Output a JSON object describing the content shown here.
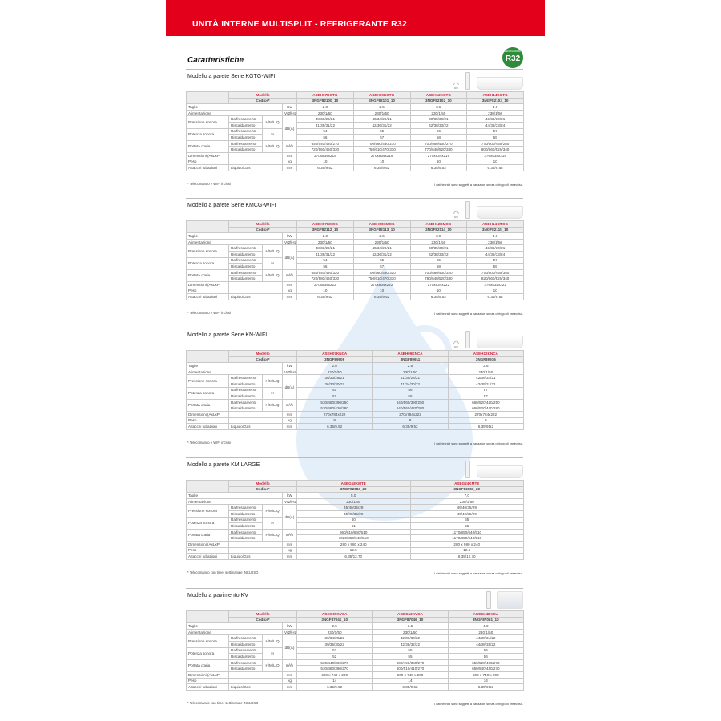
{
  "header": {
    "title": "UNITÀ INTERNE MULTISPLIT - REFRIGERANTE R32",
    "subtitle": "Caratteristiche",
    "badge": "R32",
    "badge_small": "REFRIGERANT"
  },
  "labels": {
    "modello": "Modello",
    "codice": "Codice*",
    "taglie": "Taglie",
    "alim": "Alimentazione",
    "press": "Pressione sonora",
    "pot": "Potenza sonora",
    "air": "Portata d'aria",
    "cool": "Raffrescamento",
    "heat": "Riscaldamento",
    "hmlq": "H/M/L/Q",
    "h": "H",
    "dims": "Dimensioni (AxLxP)",
    "peso": "Peso",
    "attacchi": "Attacchi tubazioni",
    "liq": "Liquido/Gas",
    "wifi": "WIFI",
    "disclaimer": "I dati tecnici sono soggetti a variazioni senza obbligo di preavviso."
  },
  "units": {
    "kw": "Kw",
    "kw2": "kW",
    "v": "V/Ø/Hz",
    "db": "dB(A)",
    "m3": "m³/h",
    "mm": "mm",
    "kg": "kg"
  },
  "sections": [
    {
      "title": "Modello a parete Serie KGTG-WIFI",
      "wifi": true,
      "unit_type": "wall",
      "kw_key": "kw",
      "note": "* Telecomando e WIFI inclusi",
      "models": [
        "ASEH07KGTG",
        "ASEH09KGTG",
        "ASEH12KGTG",
        "ASEH14KGTG"
      ],
      "codes": [
        "3NGF82100_10",
        "3NGF82101_10",
        "3NGF82102_10",
        "3NGF82103_10"
      ],
      "taglie": [
        "2.0",
        "2.5",
        "3.5",
        "4.0"
      ],
      "alim": [
        "230/1/50",
        "230/1/50",
        "230/1/50",
        "230/1/50"
      ],
      "press_cool": [
        "38/33/29/21",
        "40/34/29/21",
        "40/35/30/21",
        "43/36/30/21"
      ],
      "press_heat": [
        "41/35/31/22",
        "42/36/31/22",
        "42/38/33/22",
        "44/39/33/24"
      ],
      "pot_cool": [
        "54",
        "55",
        "56",
        "57"
      ],
      "pot_heat": [
        "56",
        "57",
        "58",
        "59"
      ],
      "air_cool": [
        "650/540/430/270",
        "700/560/430/270",
        "700/560/430/270",
        "770/600/450/280"
      ],
      "air_heat": [
        "720/560/460/330",
        "750/610/470/330",
        "770/640/520/330",
        "800/660/520/340"
      ],
      "dims": [
        "270x834x215",
        "270x834x215",
        "270x834x215",
        "270x834x215"
      ],
      "peso": [
        "10",
        "10",
        "10",
        "10"
      ],
      "attacchi": [
        "6.35/9.52",
        "6.35/9.52",
        "6.35/9.52",
        "6.35/9.52"
      ]
    },
    {
      "title": "Modello a parete Serie KMCG-WIFI",
      "wifi": true,
      "unit_type": "wall",
      "kw_key": "kw2",
      "note": "* Telecomando e WIFI inclusi",
      "models": [
        "ASEH07KMCG",
        "ASEH09KMCG",
        "ASEH12KMCG",
        "ASEH14KMCG"
      ],
      "codes": [
        "3NGF82112_10",
        "3NGF82113_10",
        "3NGF82114_10",
        "3NGF82115_10"
      ],
      "taglie": [
        "2.0",
        "2.5",
        "3.5",
        "4.0"
      ],
      "alim": [
        "230/1/50",
        "230/1/50",
        "230/1/50",
        "230/1/50"
      ],
      "press_cool": [
        "38/33/29/21",
        "40/34/29/21",
        "40/35/30/21",
        "43/36/30/21"
      ],
      "press_heat": [
        "41/35/31/22",
        "42/36/31/22",
        "42/38/33/22",
        "44/39/33/24"
      ],
      "pot_cool": [
        "54",
        "55",
        "55",
        "57"
      ],
      "pot_heat": [
        "56",
        "57",
        "58",
        "59"
      ],
      "air_cool": [
        "650/540/430/320",
        "700/560/430/320",
        "700/580/430/320",
        "770/600/450/350"
      ],
      "air_heat": [
        "720/580/460/330",
        "750/610/470/330",
        "780/640/520/330",
        "820/660/520/340"
      ],
      "dims": [
        "270x834x222",
        "270x834x222",
        "270x834x222",
        "270x834x222"
      ],
      "peso": [
        "10",
        "10",
        "10",
        "10"
      ],
      "attacchi": [
        "6.35/9.52",
        "6.35/9.52",
        "6.35/9.52",
        "6.35/9.52"
      ]
    },
    {
      "title": "Modello a parete Serie KN-WIFI",
      "wifi": true,
      "unit_type": "wall",
      "kw_key": "kw2",
      "note": "* Telecomando e WIFI inclusi",
      "models": [
        "ASEH07KNCA",
        "ASEH09KNCA",
        "ASEH12KNCA"
      ],
      "codes": [
        "3NGF89906",
        "3NGF89911",
        "3NGF89916"
      ],
      "taglie": [
        "2.0",
        "2.5",
        "3.5"
      ],
      "alim": [
        "230/1/50",
        "230/1/50",
        "230/1/50"
      ],
      "press_cool": [
        "36/33/28/21",
        "41/35/28/21",
        "42/36/32/21"
      ],
      "press_heat": [
        "36/33/30/22",
        "41/34/30/22",
        "42/35/31/22"
      ],
      "pot_cool": [
        "51",
        "56",
        "57"
      ],
      "pot_heat": [
        "51",
        "56",
        "57"
      ],
      "air_cool": [
        "530/460/390/250",
        "640/560/390/250",
        "660/520/440/250"
      ],
      "air_heat": [
        "530/460/420/280",
        "640/560/420/280",
        "660/520/440/280"
      ],
      "dims": [
        "270x784x222",
        "270x784x222",
        "270x784x222"
      ],
      "peso": [
        "9",
        "9",
        "9"
      ],
      "attacchi": [
        "6.35/9.52",
        "6.35/9.52",
        "6.35/9.52"
      ]
    },
    {
      "title": "Modello a parete KM LARGE",
      "wifi": false,
      "unit_type": "wall",
      "kw_key": "kw2",
      "note": "* Telecomando con timer settimanale INCLUSO",
      "models": [
        "ASEG18KMTE",
        "ASEG24KMTE"
      ],
      "codes": [
        "3NGF82083_20",
        "3NGF82086_20"
      ],
      "taglie": [
        "5.0",
        "7.0"
      ],
      "alim": [
        "230/1/50",
        "230/1/50"
      ],
      "press_cool": [
        "45/40/35/29",
        "49/40/35/29"
      ],
      "press_heat": [
        "45/40/35/29",
        "49/40/35/29"
      ],
      "pot_cool": [
        "60",
        "65"
      ],
      "pot_heat": [
        "61",
        "65"
      ],
      "air_cool": [
        "960/810/640/510",
        "1170/850/640/510"
      ],
      "air_heat": [
        "1020/850/640/510",
        "1170/850/640/510"
      ],
      "dims": [
        "280 x 980 x 240",
        "280 x 980 x 240"
      ],
      "peso": [
        "12.5",
        "12.5"
      ],
      "attacchi": [
        "6.35/12.70",
        "6.35/12.70"
      ]
    },
    {
      "title": "Modello a pavimento KV",
      "wifi": false,
      "unit_type": "floor",
      "kw_key": "kw2",
      "note": "* Telecomando con timer settimanale INCLUSO",
      "models": [
        "AGEG09KVCA",
        "AGEG12KVCA",
        "AGEG14KVCA"
      ],
      "codes": [
        "3NGF87041_10",
        "3NGF87046_10",
        "3NGF87051_10"
      ],
      "taglie": [
        "2.5",
        "3.5",
        "4.0"
      ],
      "alim": [
        "230/1/50",
        "230/1/50",
        "230/1/50"
      ],
      "press_cool": [
        "39/34/28/22",
        "42/36/30/22",
        "44/38/31/22"
      ],
      "press_heat": [
        "39/35/30/22",
        "42/38/32/22",
        "44/38/33/22"
      ],
      "pot_cool": [
        "52",
        "55",
        "56"
      ],
      "pot_heat": [
        "52",
        "55",
        "56"
      ],
      "air_cool": [
        "530/440/360/270",
        "600/490/380/270",
        "650/520/400/270"
      ],
      "air_heat": [
        "530/460/380/270",
        "600/510/410/270",
        "650/540/430/270"
      ],
      "dims": [
        "600 x 740 x 200",
        "600 x 740 x 200",
        "600 x 740 x 200"
      ],
      "peso": [
        "14",
        "14",
        "14"
      ],
      "attacchi": [
        "6.35/9.52",
        "6.35/9.52",
        "6.35/9.52"
      ]
    }
  ],
  "colors": {
    "banner": "#e3001b",
    "model_text": "#d0203a",
    "badge": "#2e8b3a"
  }
}
